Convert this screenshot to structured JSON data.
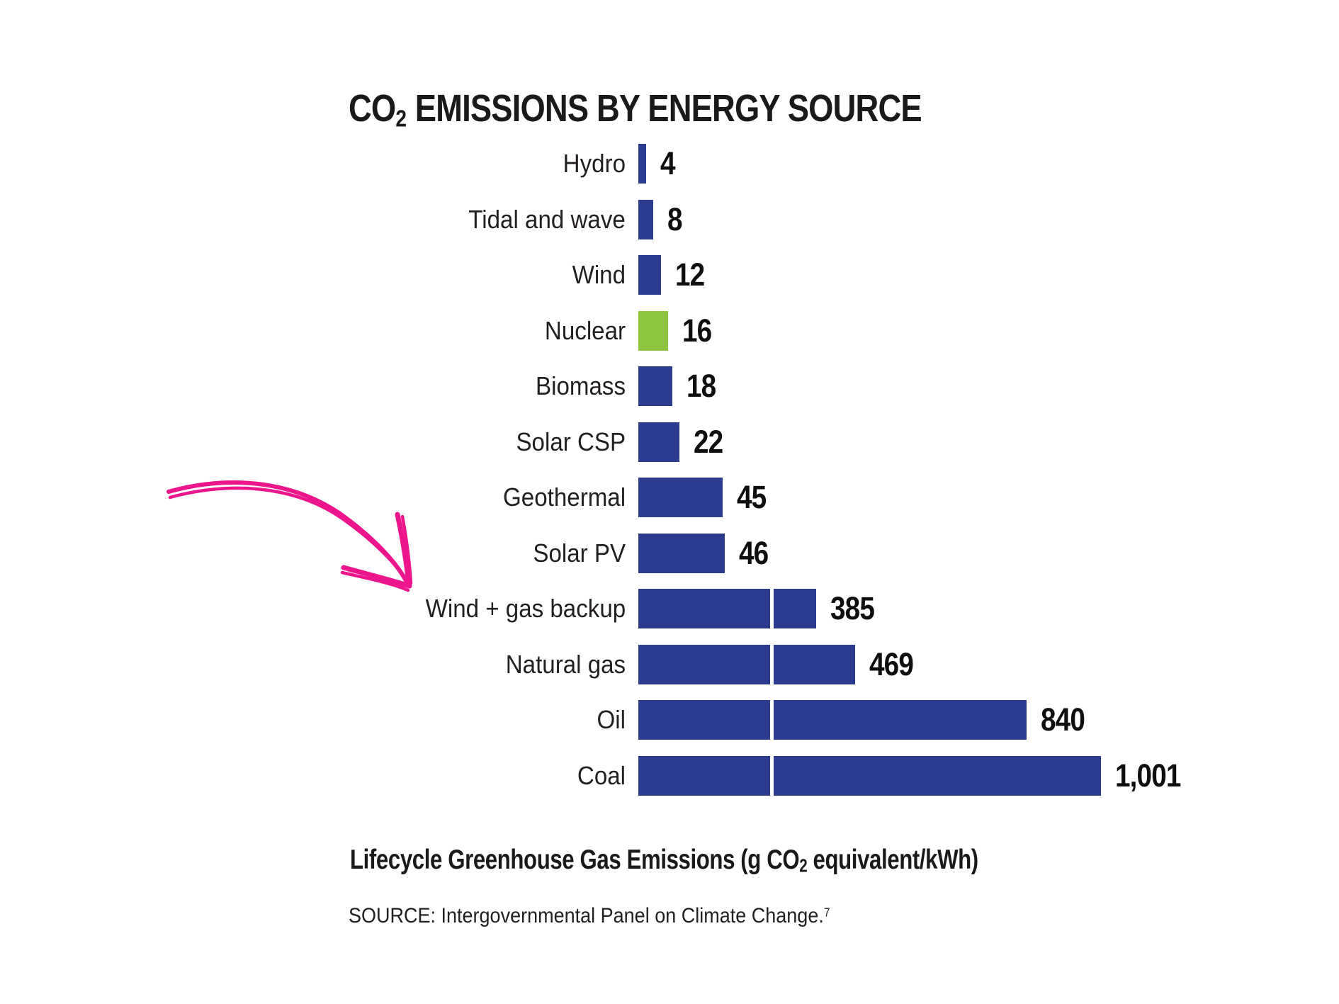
{
  "title": {
    "prefix": "CO",
    "subscript": "2",
    "rest": " EMISSIONS BY ENERGY SOURCE"
  },
  "footer": {
    "axis_label_prefix": "Lifecycle Greenhouse Gas Emissions (g CO",
    "axis_label_subscript": "2",
    "axis_label_rest": " equivalent/kWh)",
    "source_text": "SOURCE: Intergovernmental Panel on Climate Change.",
    "source_superscript": "7"
  },
  "annotation": {
    "type": "hand-drawn-arrow",
    "points_to": "Wind + gas backup",
    "color": "#ec158c"
  },
  "chart_data": {
    "type": "bar",
    "orientation": "horizontal",
    "title": "CO2 EMISSIONS BY ENERGY SOURCE",
    "xlabel": "Lifecycle Greenhouse Gas Emissions (g CO2 equivalent/kWh)",
    "source": "SOURCE: Intergovernmental Panel on Climate Change.(7)",
    "grid": false,
    "legend": false,
    "axis_break": true,
    "categories": [
      "Hydro",
      "Tidal and wave",
      "Wind",
      "Nuclear",
      "Biomass",
      "Solar CSP",
      "Geothermal",
      "Solar PV",
      "Wind + gas backup",
      "Natural gas",
      "Oil",
      "Coal"
    ],
    "values": [
      4,
      8,
      12,
      16,
      18,
      22,
      45,
      46,
      385,
      469,
      840,
      1001
    ],
    "value_labels": [
      "4",
      "8",
      "12",
      "16",
      "18",
      "22",
      "45",
      "46",
      "385",
      "469",
      "840",
      "1,001"
    ],
    "highlight_category": "Nuclear",
    "highlight_index": 3,
    "colors": {
      "bar": "#2b3b8f",
      "highlight": "#8cc63f",
      "annotation": "#ec158c",
      "text": "#231f20"
    }
  }
}
